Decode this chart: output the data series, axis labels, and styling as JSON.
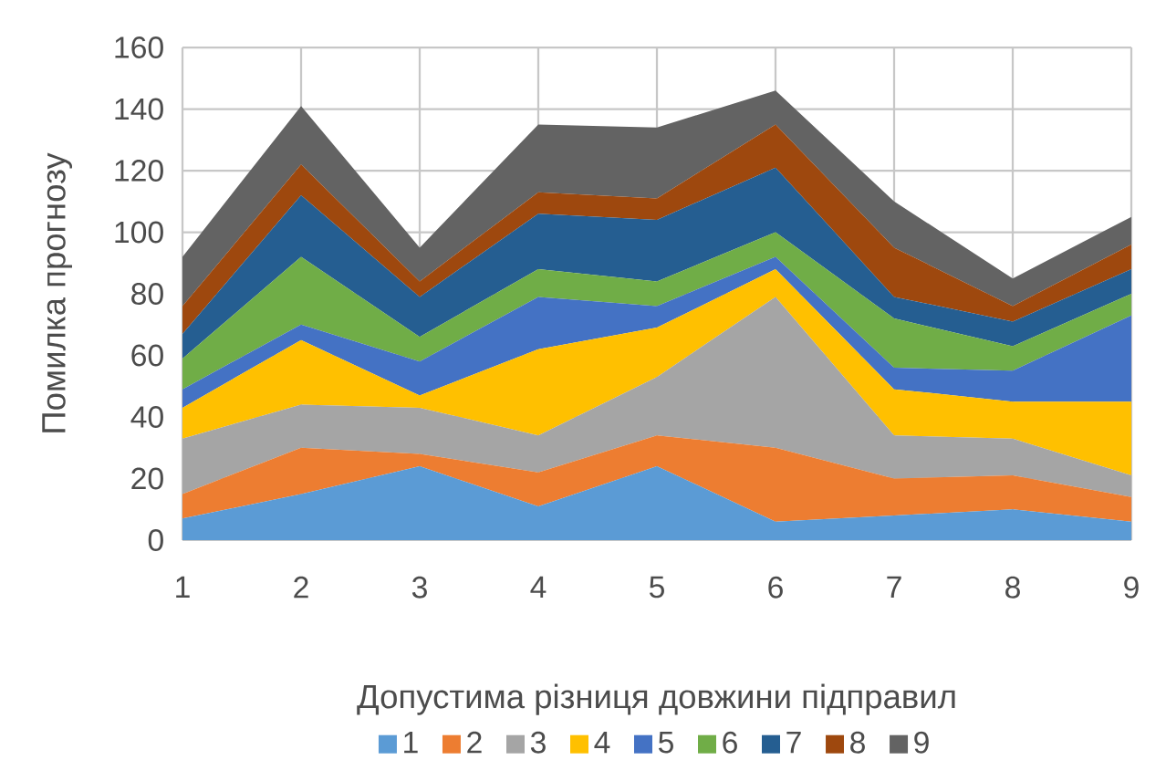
{
  "chart_data": {
    "type": "area",
    "stacked": true,
    "xlabel": "Допустима різниця довжини підправил",
    "ylabel": "Помилка прогнозу",
    "x": [
      1,
      2,
      3,
      4,
      5,
      6,
      7,
      8,
      9
    ],
    "xlim": [
      1,
      9
    ],
    "xticks": [
      1,
      2,
      3,
      4,
      5,
      6,
      7,
      8,
      9
    ],
    "ylim": [
      0,
      160
    ],
    "yticks": [
      0,
      20,
      40,
      60,
      80,
      100,
      120,
      140,
      160
    ],
    "grid": true,
    "legend": "bottom",
    "series": [
      {
        "name": "1",
        "color": "#5b9bd5",
        "values": [
          7,
          15,
          24,
          11,
          24,
          6,
          8,
          10,
          6
        ]
      },
      {
        "name": "2",
        "color": "#ed7d31",
        "values": [
          8,
          15,
          4,
          11,
          10,
          24,
          12,
          11,
          8
        ]
      },
      {
        "name": "3",
        "color": "#a5a5a5",
        "values": [
          18,
          14,
          15,
          12,
          19,
          49,
          14,
          12,
          7
        ]
      },
      {
        "name": "4",
        "color": "#ffc000",
        "values": [
          10,
          21,
          4,
          28,
          16,
          9,
          15,
          12,
          24
        ]
      },
      {
        "name": "5",
        "color": "#4472c4",
        "values": [
          6,
          5,
          11,
          17,
          7,
          4,
          7,
          10,
          28
        ]
      },
      {
        "name": "6",
        "color": "#70ad47",
        "values": [
          10,
          22,
          8,
          9,
          8,
          8,
          16,
          8,
          7
        ]
      },
      {
        "name": "7",
        "color": "#255e91",
        "values": [
          8,
          20,
          13,
          18,
          20,
          21,
          7,
          8,
          8
        ]
      },
      {
        "name": "8",
        "color": "#9e480e",
        "values": [
          9,
          10,
          5,
          7,
          7,
          14,
          16,
          5,
          8
        ]
      },
      {
        "name": "9",
        "color": "#636363",
        "values": [
          16,
          19,
          11,
          22,
          23,
          11,
          15,
          9,
          9
        ]
      }
    ]
  }
}
